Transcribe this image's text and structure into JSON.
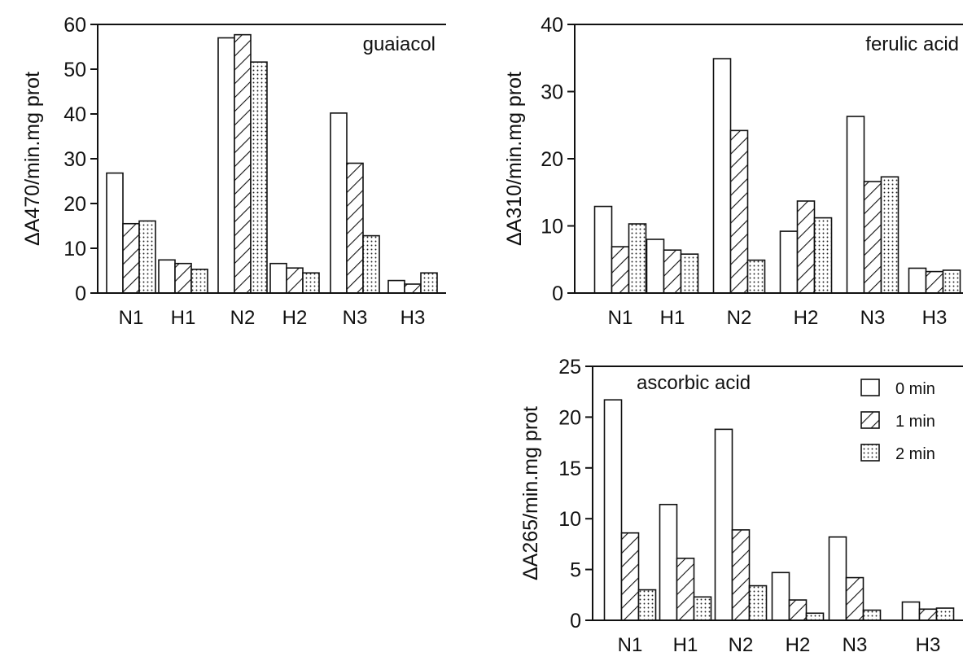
{
  "chart_data": [
    {
      "type": "bar",
      "title": "guaiacol",
      "ylabel": "ΔA470/min.mg prot",
      "xlabel": "",
      "ylim": [
        0,
        60
      ],
      "yticks": [
        0,
        10,
        20,
        30,
        40,
        50,
        60
      ],
      "categories": [
        "N1",
        "H1",
        "N2",
        "H2",
        "N3",
        "H3"
      ],
      "series": [
        {
          "name": "0 min",
          "pattern": "open",
          "values": [
            26.8,
            7.4,
            57.0,
            6.6,
            40.2,
            2.8
          ]
        },
        {
          "name": "1 min",
          "pattern": "hatched",
          "values": [
            15.5,
            6.6,
            57.7,
            5.6,
            29.0,
            2.0
          ]
        },
        {
          "name": "2 min",
          "pattern": "dotted",
          "values": [
            16.1,
            5.3,
            51.6,
            4.5,
            12.8,
            4.5
          ]
        }
      ]
    },
    {
      "type": "bar",
      "title": "ferulic  acid",
      "ylabel": "ΔA310/min.mg prot",
      "xlabel": "",
      "ylim": [
        0,
        40
      ],
      "yticks": [
        0,
        10,
        20,
        30,
        40
      ],
      "categories": [
        "N1",
        "H1",
        "N2",
        "H2",
        "N3",
        "H3"
      ],
      "series": [
        {
          "name": "0 min",
          "pattern": "open",
          "values": [
            12.9,
            8.0,
            34.9,
            9.2,
            26.3,
            3.7
          ]
        },
        {
          "name": "1 min",
          "pattern": "hatched",
          "values": [
            6.9,
            6.4,
            24.2,
            13.7,
            16.6,
            3.2
          ]
        },
        {
          "name": "2 min",
          "pattern": "dotted",
          "values": [
            10.3,
            5.8,
            4.9,
            11.2,
            17.3,
            3.4
          ]
        }
      ]
    },
    {
      "type": "bar",
      "title": "ascorbic  acid",
      "ylabel": "ΔA265/min.mg prot",
      "xlabel": "",
      "ylim": [
        0,
        25
      ],
      "yticks": [
        0,
        5,
        10,
        15,
        20,
        25
      ],
      "categories": [
        "N1",
        "H1",
        "N2",
        "H2",
        "N3",
        "H3"
      ],
      "legend": {
        "position": "top-right",
        "labels": [
          "0 min",
          "1 min",
          "2 min"
        ]
      },
      "series": [
        {
          "name": "0 min",
          "pattern": "open",
          "values": [
            21.7,
            11.4,
            18.8,
            4.7,
            8.2,
            1.8
          ]
        },
        {
          "name": "1 min",
          "pattern": "hatched",
          "values": [
            8.6,
            6.1,
            8.9,
            2.0,
            4.2,
            1.1
          ]
        },
        {
          "name": "2 min",
          "pattern": "dotted",
          "values": [
            3.0,
            2.3,
            3.4,
            0.7,
            1.0,
            1.2
          ]
        }
      ]
    }
  ]
}
